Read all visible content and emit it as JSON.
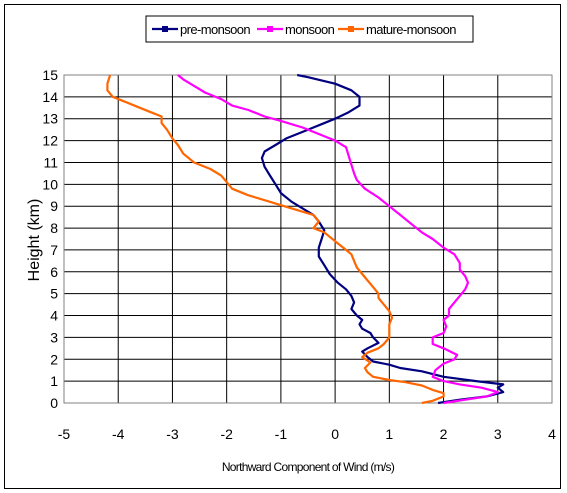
{
  "chart_data": {
    "type": "line",
    "xlabel": "Northward Component of Wind (m/s)",
    "ylabel": "Height (km)",
    "xlim": [
      -5,
      4
    ],
    "ylim": [
      0,
      15
    ],
    "xticks": [
      -5,
      -4,
      -3,
      -2,
      -1,
      0,
      1,
      2,
      3,
      4
    ],
    "yticks": [
      0,
      1,
      2,
      3,
      4,
      5,
      6,
      7,
      8,
      9,
      10,
      11,
      12,
      13,
      14,
      15
    ],
    "grid": true,
    "legend_position": "top",
    "series": [
      {
        "name": "pre-monsoon",
        "color": "#000080",
        "points": [
          [
            1.9,
            0.0
          ],
          [
            2.3,
            0.15
          ],
          [
            2.8,
            0.3
          ],
          [
            3.1,
            0.5
          ],
          [
            3.0,
            0.7
          ],
          [
            3.1,
            0.85
          ],
          [
            2.6,
            1.0
          ],
          [
            2.0,
            1.2
          ],
          [
            1.6,
            1.45
          ],
          [
            1.2,
            1.6
          ],
          [
            1.0,
            1.75
          ],
          [
            0.7,
            1.9
          ],
          [
            0.6,
            2.1
          ],
          [
            0.5,
            2.35
          ],
          [
            0.6,
            2.5
          ],
          [
            0.8,
            2.75
          ],
          [
            0.7,
            3.0
          ],
          [
            0.65,
            3.2
          ],
          [
            0.5,
            3.4
          ],
          [
            0.45,
            3.6
          ],
          [
            0.5,
            3.8
          ],
          [
            0.4,
            4.0
          ],
          [
            0.3,
            4.3
          ],
          [
            0.35,
            4.6
          ],
          [
            0.3,
            4.9
          ],
          [
            0.2,
            5.2
          ],
          [
            0.05,
            5.5
          ],
          [
            -0.1,
            5.9
          ],
          [
            -0.2,
            6.3
          ],
          [
            -0.3,
            6.7
          ],
          [
            -0.3,
            7.1
          ],
          [
            -0.25,
            7.5
          ],
          [
            -0.2,
            7.9
          ],
          [
            -0.3,
            8.3
          ],
          [
            -0.4,
            8.6
          ],
          [
            -0.6,
            8.9
          ],
          [
            -0.8,
            9.2
          ],
          [
            -1.0,
            9.6
          ],
          [
            -1.1,
            10.0
          ],
          [
            -1.2,
            10.4
          ],
          [
            -1.3,
            10.8
          ],
          [
            -1.35,
            11.2
          ],
          [
            -1.3,
            11.5
          ],
          [
            -1.1,
            11.8
          ],
          [
            -0.9,
            12.1
          ],
          [
            -0.6,
            12.4
          ],
          [
            -0.3,
            12.7
          ],
          [
            0.0,
            13.0
          ],
          [
            0.25,
            13.3
          ],
          [
            0.45,
            13.6
          ],
          [
            0.45,
            14.0
          ],
          [
            0.3,
            14.3
          ],
          [
            0.0,
            14.6
          ],
          [
            -0.5,
            14.9
          ],
          [
            -0.7,
            15.0
          ]
        ]
      },
      {
        "name": "monsoon",
        "color": "#ff00ff",
        "points": [
          [
            2.0,
            0.0
          ],
          [
            2.4,
            0.15
          ],
          [
            2.8,
            0.3
          ],
          [
            3.0,
            0.5
          ],
          [
            2.7,
            0.7
          ],
          [
            2.3,
            0.85
          ],
          [
            2.0,
            1.0
          ],
          [
            1.8,
            1.2
          ],
          [
            1.85,
            1.5
          ],
          [
            2.0,
            1.8
          ],
          [
            2.2,
            2.0
          ],
          [
            2.25,
            2.2
          ],
          [
            2.0,
            2.5
          ],
          [
            1.8,
            2.7
          ],
          [
            1.8,
            3.0
          ],
          [
            2.0,
            3.2
          ],
          [
            2.05,
            3.5
          ],
          [
            2.0,
            3.8
          ],
          [
            2.1,
            4.0
          ],
          [
            2.1,
            4.3
          ],
          [
            2.2,
            4.6
          ],
          [
            2.3,
            4.9
          ],
          [
            2.4,
            5.2
          ],
          [
            2.45,
            5.5
          ],
          [
            2.4,
            5.8
          ],
          [
            2.3,
            6.1
          ],
          [
            2.3,
            6.4
          ],
          [
            2.2,
            6.8
          ],
          [
            2.0,
            7.1
          ],
          [
            1.8,
            7.5
          ],
          [
            1.6,
            7.8
          ],
          [
            1.4,
            8.2
          ],
          [
            1.2,
            8.6
          ],
          [
            1.0,
            9.0
          ],
          [
            0.8,
            9.4
          ],
          [
            0.55,
            9.8
          ],
          [
            0.4,
            10.2
          ],
          [
            0.35,
            10.5
          ],
          [
            0.3,
            10.9
          ],
          [
            0.25,
            11.3
          ],
          [
            0.2,
            11.7
          ],
          [
            0.0,
            12.0
          ],
          [
            -0.3,
            12.3
          ],
          [
            -0.6,
            12.6
          ],
          [
            -1.0,
            12.9
          ],
          [
            -1.3,
            13.1
          ],
          [
            -1.6,
            13.4
          ],
          [
            -1.9,
            13.6
          ],
          [
            -2.1,
            13.9
          ],
          [
            -2.4,
            14.2
          ],
          [
            -2.6,
            14.5
          ],
          [
            -2.8,
            14.8
          ],
          [
            -2.9,
            15.0
          ]
        ]
      },
      {
        "name": "mature-monsoon",
        "color": "#ff6600",
        "points": [
          [
            1.6,
            0.0
          ],
          [
            1.8,
            0.1
          ],
          [
            2.0,
            0.3
          ],
          [
            2.0,
            0.45
          ],
          [
            1.8,
            0.6
          ],
          [
            1.6,
            0.8
          ],
          [
            1.3,
            0.95
          ],
          [
            1.0,
            1.05
          ],
          [
            0.7,
            1.2
          ],
          [
            0.6,
            1.4
          ],
          [
            0.55,
            1.6
          ],
          [
            0.65,
            1.85
          ],
          [
            0.5,
            2.1
          ],
          [
            0.6,
            2.3
          ],
          [
            0.8,
            2.5
          ],
          [
            0.9,
            2.7
          ],
          [
            1.0,
            3.0
          ],
          [
            1.0,
            3.3
          ],
          [
            1.0,
            3.6
          ],
          [
            1.05,
            3.9
          ],
          [
            1.0,
            4.2
          ],
          [
            0.9,
            4.5
          ],
          [
            0.8,
            4.8
          ],
          [
            0.8,
            5.0
          ],
          [
            0.7,
            5.3
          ],
          [
            0.6,
            5.6
          ],
          [
            0.5,
            5.9
          ],
          [
            0.4,
            6.2
          ],
          [
            0.35,
            6.5
          ],
          [
            0.3,
            6.8
          ],
          [
            0.2,
            7.0
          ],
          [
            0.05,
            7.3
          ],
          [
            -0.1,
            7.6
          ],
          [
            -0.2,
            7.8
          ],
          [
            -0.4,
            8.0
          ],
          [
            -0.3,
            8.3
          ],
          [
            -0.4,
            8.6
          ],
          [
            -0.8,
            8.9
          ],
          [
            -1.2,
            9.2
          ],
          [
            -1.6,
            9.5
          ],
          [
            -1.9,
            9.8
          ],
          [
            -2.0,
            10.1
          ],
          [
            -2.1,
            10.4
          ],
          [
            -2.3,
            10.7
          ],
          [
            -2.6,
            11.0
          ],
          [
            -2.8,
            11.4
          ],
          [
            -2.9,
            11.8
          ],
          [
            -3.0,
            12.1
          ],
          [
            -3.1,
            12.5
          ],
          [
            -3.2,
            12.8
          ],
          [
            -3.2,
            13.1
          ],
          [
            -3.4,
            13.3
          ],
          [
            -3.6,
            13.5
          ],
          [
            -3.9,
            13.8
          ],
          [
            -4.1,
            14.0
          ],
          [
            -4.2,
            14.3
          ],
          [
            -4.2,
            14.6
          ],
          [
            -4.15,
            15.0
          ]
        ]
      }
    ]
  }
}
